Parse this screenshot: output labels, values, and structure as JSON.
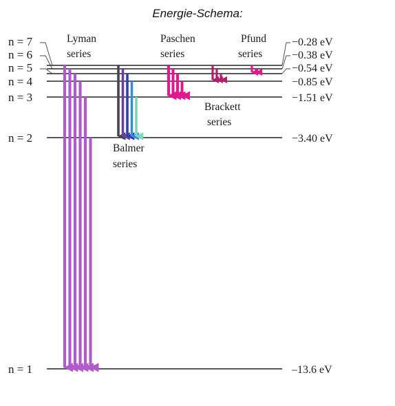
{
  "title": "Energie-Schema:",
  "levels": [
    {
      "n": 7,
      "label": "n = 7",
      "energy": "−0.28 eV"
    },
    {
      "n": 6,
      "label": "n = 6",
      "energy": "−0.38 eV"
    },
    {
      "n": 5,
      "label": "n = 5",
      "energy": "−0.54 eV"
    },
    {
      "n": 4,
      "label": "n = 4",
      "energy": "−0.85 eV"
    },
    {
      "n": 3,
      "label": "n = 3",
      "energy": "−1.51 eV"
    },
    {
      "n": 2,
      "label": "n = 2",
      "energy": "−3.40 eV"
    },
    {
      "n": 1,
      "label": "n = 1",
      "energy": "–13.6 eV"
    }
  ],
  "series": {
    "lyman": {
      "line1": "Lyman",
      "line2": "series",
      "color": "#b05cc8",
      "lower": 1,
      "uppers": [
        7,
        6,
        5,
        4,
        3,
        2
      ]
    },
    "balmer": {
      "line1": "Balmer",
      "line2": "series",
      "colors": [
        "#444455",
        "#6a3fa0",
        "#2f3fb0",
        "#3a8fd0",
        "#7fd6c0",
        "#e0202a"
      ],
      "lower": 2,
      "uppers": [
        7,
        6,
        5,
        4,
        3
      ]
    },
    "paschen": {
      "line1": "Paschen",
      "line2": "series",
      "color": "#e01a8c",
      "lower": 3,
      "uppers": [
        7,
        6,
        5,
        4
      ]
    },
    "brackett": {
      "line1": "Brackett",
      "line2": "series",
      "color": "#b0206a",
      "lower": 4,
      "uppers": [
        7,
        6,
        5
      ]
    },
    "pfund": {
      "line1": "Pfund",
      "line2": "series",
      "color": "#e01a8c",
      "lower": 5,
      "uppers": [
        7,
        6
      ]
    }
  }
}
